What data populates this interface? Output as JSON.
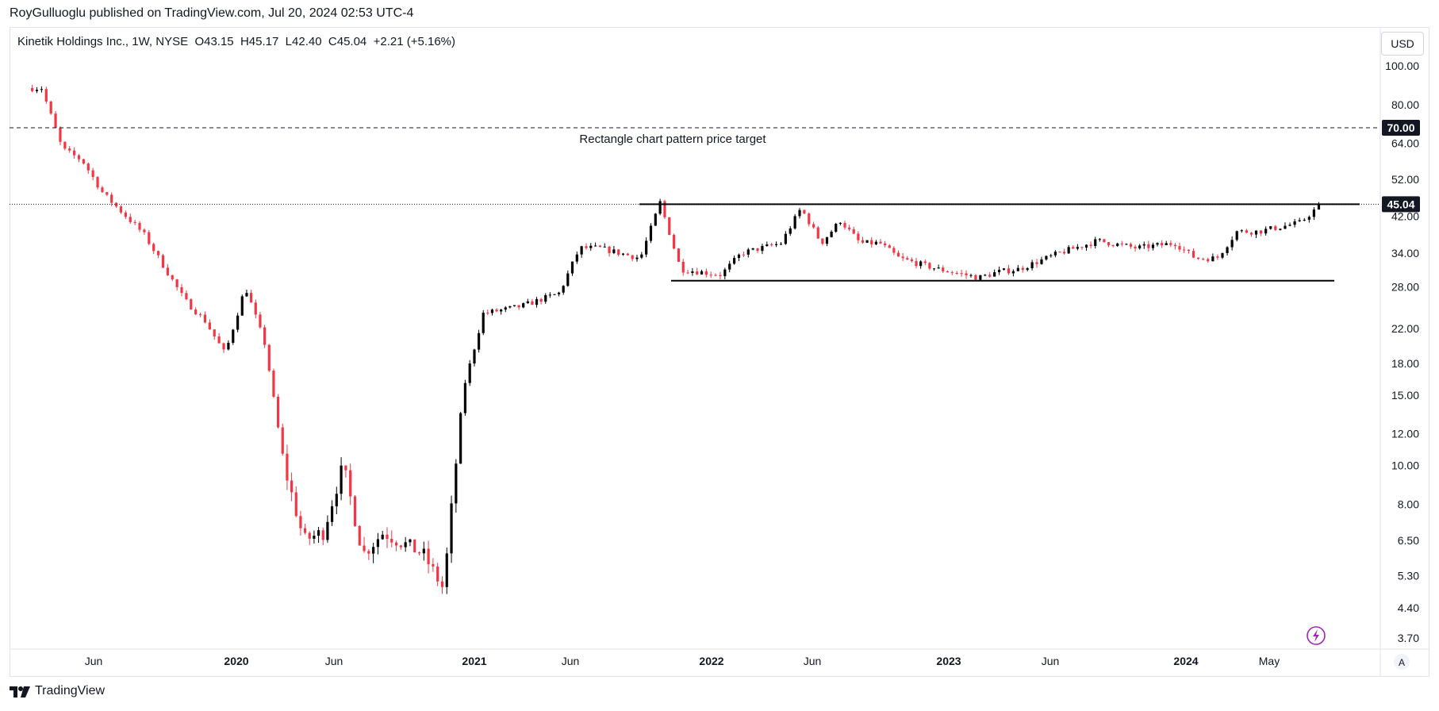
{
  "header": {
    "published_line": "RoyGulluoglu published on TradingView.com, Jul 20, 2024 02:53 UTC-4"
  },
  "legend": {
    "symbol": "Kinetik Holdings Inc., 1W, NYSE",
    "ohlc": "O43.15  H45.17  L42.40  C45.04  +2.21 (+5.16%)"
  },
  "currency_button": "USD",
  "footer": {
    "brand": "TradingView"
  },
  "colors": {
    "up": "#000000",
    "down": "#f23645",
    "text": "#131722",
    "grid": "#e0e3eb"
  },
  "icons": [
    "tradingview-logo-icon",
    "lightning-icon",
    "auto-scale-icon"
  ],
  "chart_data": {
    "type": "candlestick",
    "title": "Kinetik Holdings Inc., 1W, NYSE",
    "y_scale": "log",
    "yticks": [
      "100.00",
      "80.00",
      "64.00",
      "52.00",
      "42.00",
      "34.00",
      "28.00",
      "22.00",
      "18.00",
      "15.00",
      "12.00",
      "10.00",
      "8.00",
      "6.50",
      "5.30",
      "4.40",
      "3.70"
    ],
    "xticks": [
      "Jun",
      "2020",
      "Jun",
      "2021",
      "Jun",
      "2022",
      "Jun",
      "2023",
      "Jun",
      "2024",
      "May"
    ],
    "xticks_bold": [
      "2020",
      "2021",
      "2022",
      "2023",
      "2024"
    ],
    "last_price": "45.04",
    "target_price": "70.00",
    "annotation": "Rectangle chart pattern price target",
    "rectangle_top": 45.04,
    "rectangle_bottom": 29.0,
    "anchors": [
      [
        "2019-03",
        88
      ],
      [
        "2019-04",
        62
      ],
      [
        "2019-05",
        58
      ],
      [
        "2019-06",
        48
      ],
      [
        "2019-08",
        38
      ],
      [
        "2019-10",
        26
      ],
      [
        "2019-11",
        23
      ],
      [
        "2019-12",
        19
      ],
      [
        "2020-01",
        28
      ],
      [
        "2020-02",
        20
      ],
      [
        "2020-03",
        10
      ],
      [
        "2020-04",
        6.5
      ],
      [
        "2020-05",
        6.8
      ],
      [
        "2020-06",
        10
      ],
      [
        "2020-07",
        6.0
      ],
      [
        "2020-08",
        6.8
      ],
      [
        "2020-10",
        6.0
      ],
      [
        "2020-11",
        4.9
      ],
      [
        "2020-12",
        15.5
      ],
      [
        "2021-01",
        24
      ],
      [
        "2021-03",
        25
      ],
      [
        "2021-05",
        27
      ],
      [
        "2021-06",
        35
      ],
      [
        "2021-07",
        35
      ],
      [
        "2021-09",
        33
      ],
      [
        "2021-10",
        45.5
      ],
      [
        "2021-11",
        31
      ],
      [
        "2022-01",
        30
      ],
      [
        "2022-02",
        34
      ],
      [
        "2022-04",
        36
      ],
      [
        "2022-05",
        44
      ],
      [
        "2022-06",
        36
      ],
      [
        "2022-07",
        41
      ],
      [
        "2022-08",
        36
      ],
      [
        "2022-09",
        36
      ],
      [
        "2022-10",
        33
      ],
      [
        "2022-12",
        31
      ],
      [
        "2023-02",
        29.5
      ],
      [
        "2023-03",
        30.5
      ],
      [
        "2023-04",
        31
      ],
      [
        "2023-06",
        34
      ],
      [
        "2023-08",
        36.5
      ],
      [
        "2023-10",
        35
      ],
      [
        "2023-12",
        36
      ],
      [
        "2024-01",
        33
      ],
      [
        "2024-02",
        33
      ],
      [
        "2024-03",
        38.5
      ],
      [
        "2024-04",
        38.5
      ],
      [
        "2024-06",
        40.5
      ],
      [
        "2024-07",
        45.04
      ]
    ]
  }
}
